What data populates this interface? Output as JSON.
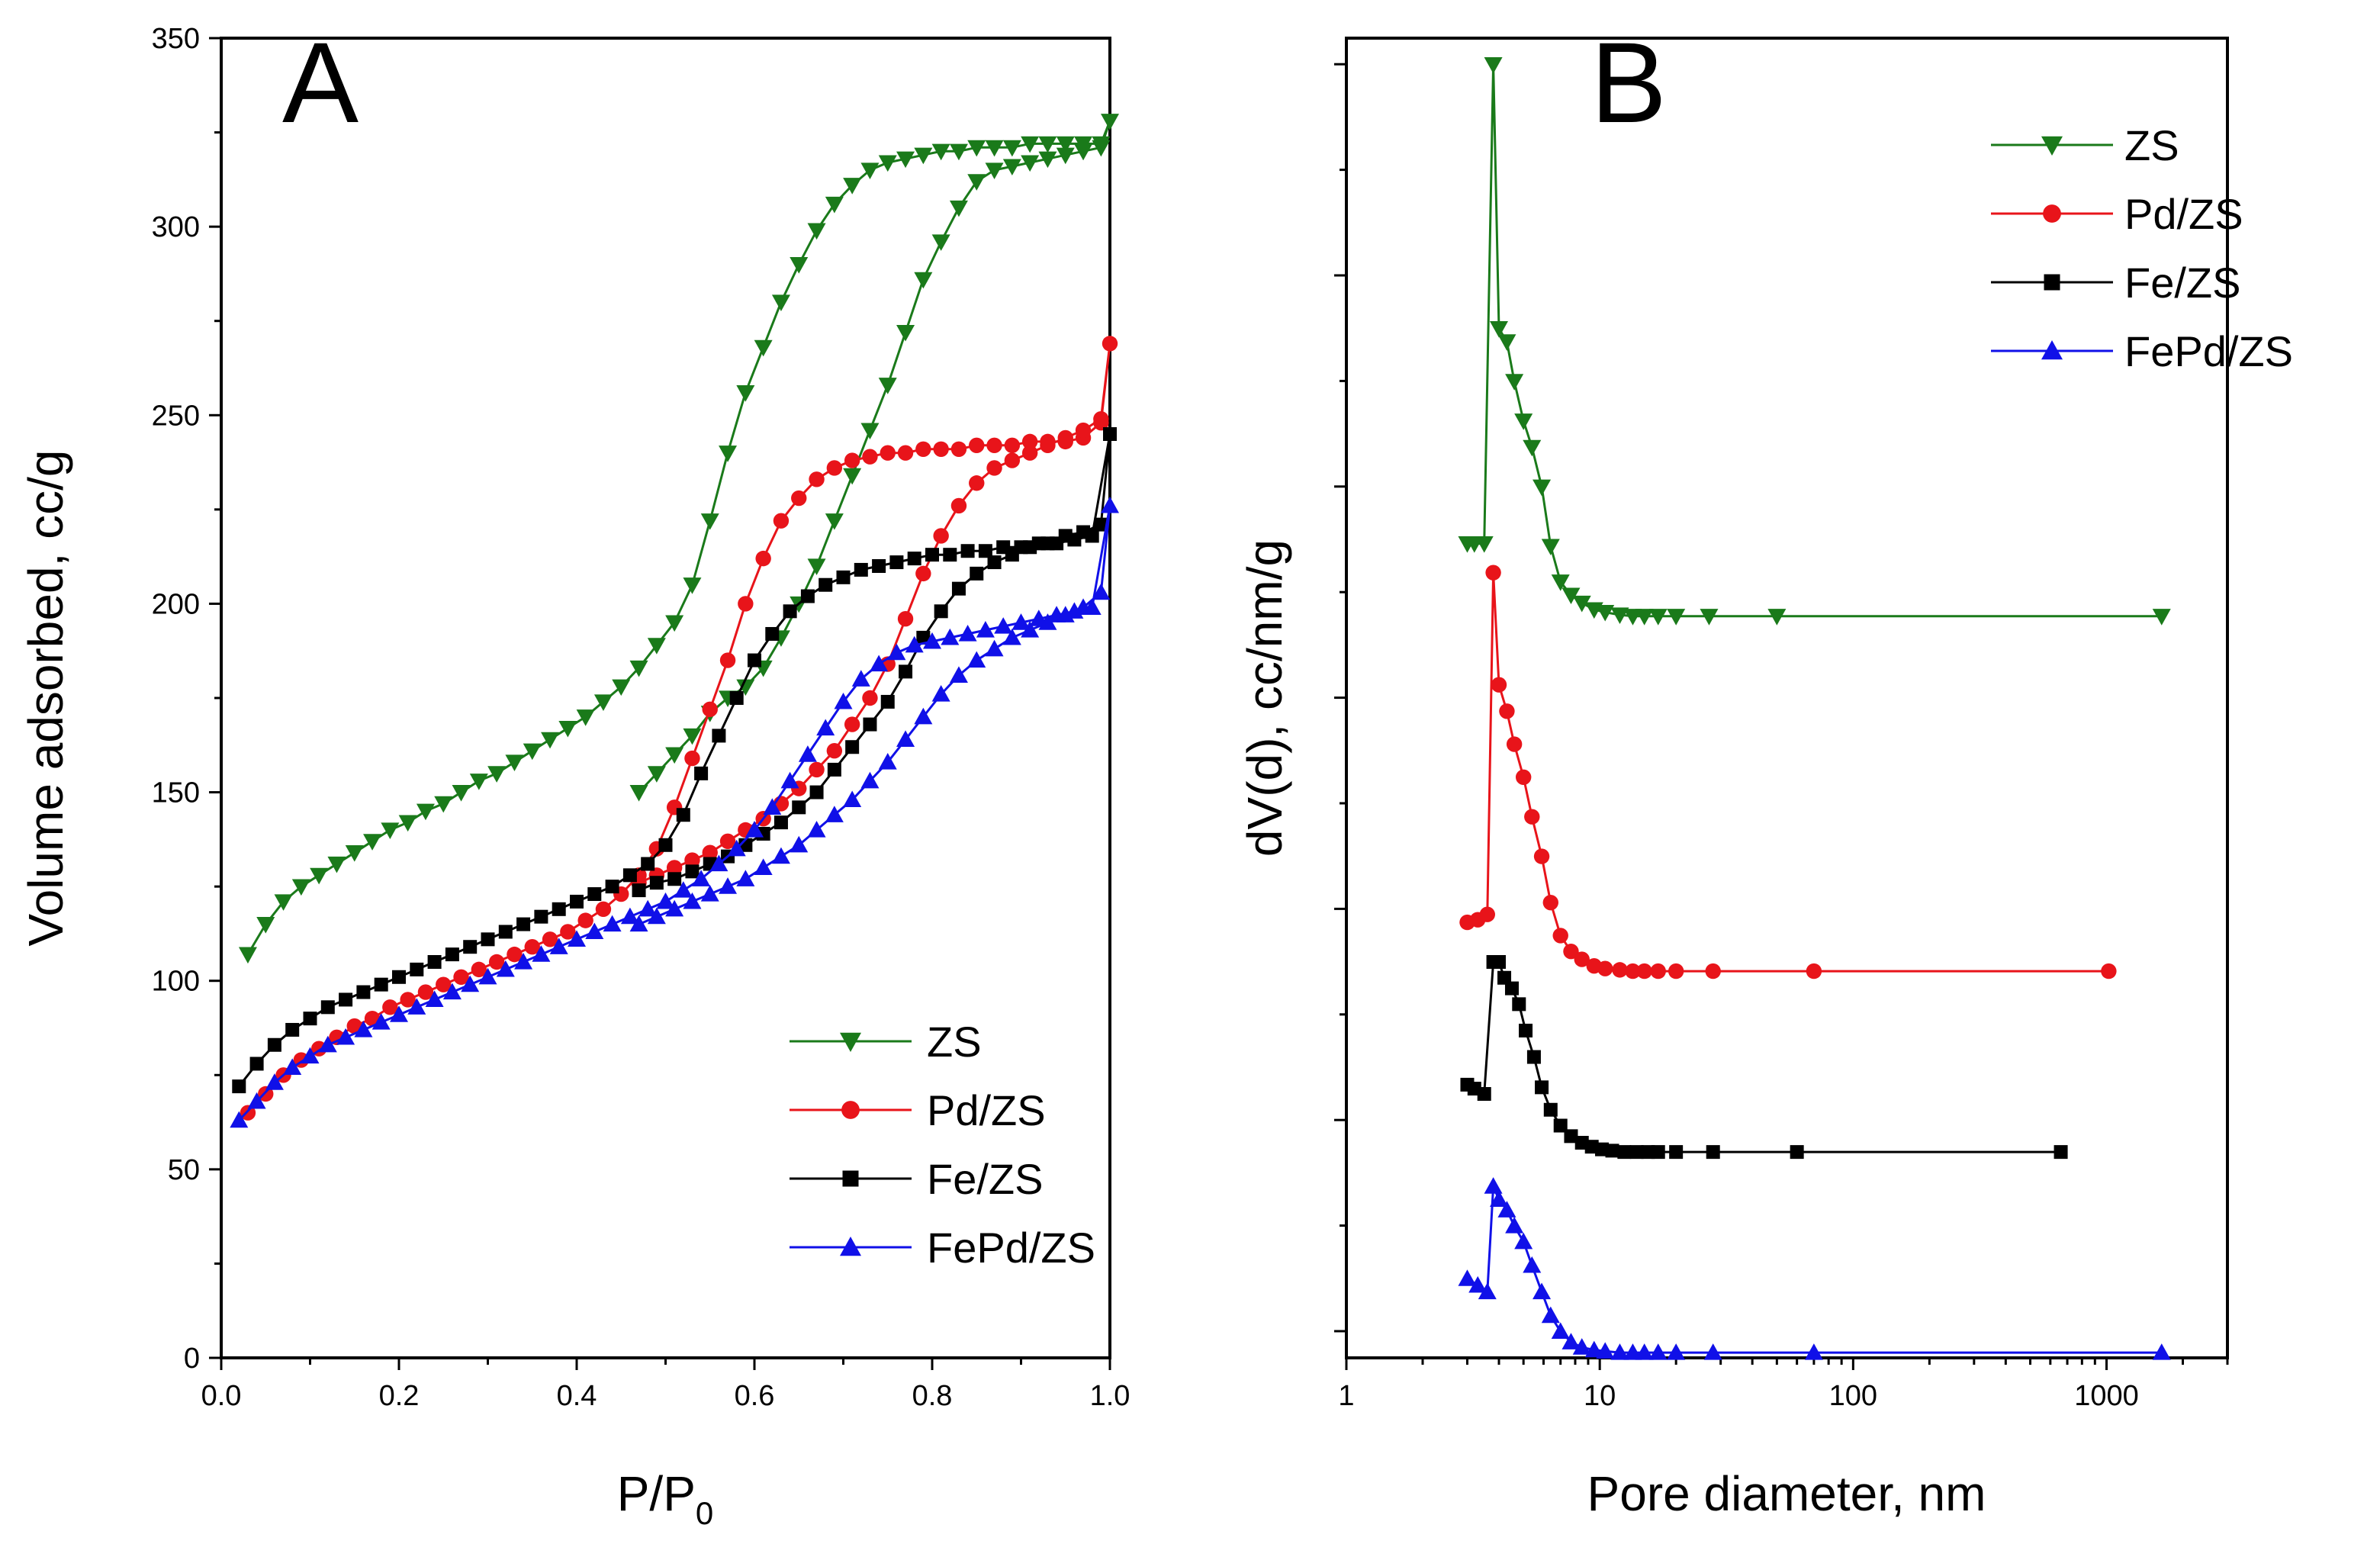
{
  "figure": {
    "panel_a_label": "A",
    "panel_b_label": "B"
  },
  "chart_data": [
    {
      "type": "line",
      "panel": "A",
      "xlabel_main": "P/P",
      "xlabel_sub": "0",
      "ylabel": "Volume adsorbed, cc/g",
      "xlim": [
        0.0,
        1.0
      ],
      "ylim": [
        0,
        350
      ],
      "xticks": [
        "0.0",
        "0.2",
        "0.4",
        "0.6",
        "0.8",
        "1.0"
      ],
      "yticks": [
        "0",
        "50",
        "100",
        "150",
        "200",
        "250",
        "300",
        "350"
      ],
      "legend_position": "lower-right",
      "series": [
        {
          "name": "ZS",
          "color": "#1a7a1a",
          "marker": "triangle-down",
          "x": [
            0.03,
            0.05,
            0.07,
            0.09,
            0.11,
            0.13,
            0.15,
            0.17,
            0.19,
            0.21,
            0.23,
            0.25,
            0.27,
            0.29,
            0.31,
            0.33,
            0.35,
            0.37,
            0.39,
            0.41,
            0.43,
            0.45,
            0.47,
            0.49,
            0.51,
            0.53,
            0.55,
            0.57,
            0.59,
            0.61,
            0.63,
            0.65,
            0.67,
            0.69,
            0.71,
            0.73,
            0.75,
            0.77,
            0.79,
            0.81,
            0.83,
            0.85,
            0.87,
            0.89,
            0.91,
            0.93,
            0.95,
            0.97,
            0.99,
            1.0,
            0.99,
            0.97,
            0.95,
            0.93,
            0.91,
            0.89,
            0.87,
            0.85,
            0.83,
            0.81,
            0.79,
            0.77,
            0.75,
            0.73,
            0.71,
            0.69,
            0.67,
            0.65,
            0.63,
            0.61,
            0.59,
            0.57,
            0.55,
            0.53,
            0.51,
            0.49,
            0.47
          ],
          "y": [
            107,
            115,
            121,
            125,
            128,
            131,
            134,
            137,
            140,
            142,
            145,
            147,
            150,
            153,
            155,
            158,
            161,
            164,
            167,
            170,
            174,
            178,
            183,
            189,
            195,
            205,
            222,
            240,
            256,
            268,
            280,
            290,
            299,
            306,
            311,
            315,
            317,
            318,
            319,
            320,
            320,
            321,
            321,
            321,
            322,
            322,
            322,
            322,
            322,
            328,
            321,
            320,
            319,
            318,
            317,
            316,
            315,
            312,
            305,
            296,
            286,
            272,
            258,
            246,
            234,
            222,
            210,
            200,
            191,
            183,
            178,
            175,
            171,
            165,
            160,
            155,
            150
          ]
        },
        {
          "name": "Pd/ZS",
          "color": "#e8141a",
          "marker": "circle",
          "x": [
            0.03,
            0.05,
            0.07,
            0.09,
            0.11,
            0.13,
            0.15,
            0.17,
            0.19,
            0.21,
            0.23,
            0.25,
            0.27,
            0.29,
            0.31,
            0.33,
            0.35,
            0.37,
            0.39,
            0.41,
            0.43,
            0.45,
            0.47,
            0.49,
            0.51,
            0.53,
            0.55,
            0.57,
            0.59,
            0.61,
            0.63,
            0.65,
            0.67,
            0.69,
            0.71,
            0.73,
            0.75,
            0.77,
            0.79,
            0.81,
            0.83,
            0.85,
            0.87,
            0.89,
            0.91,
            0.93,
            0.95,
            0.97,
            0.99,
            1.0,
            0.99,
            0.97,
            0.95,
            0.93,
            0.91,
            0.89,
            0.87,
            0.85,
            0.83,
            0.81,
            0.79,
            0.77,
            0.75,
            0.73,
            0.71,
            0.69,
            0.67,
            0.65,
            0.63,
            0.61,
            0.59,
            0.57,
            0.55,
            0.53,
            0.51,
            0.49,
            0.47
          ],
          "y": [
            65,
            70,
            75,
            79,
            82,
            85,
            88,
            90,
            93,
            95,
            97,
            99,
            101,
            103,
            105,
            107,
            109,
            111,
            113,
            116,
            119,
            123,
            128,
            135,
            146,
            159,
            172,
            185,
            200,
            212,
            222,
            228,
            233,
            236,
            238,
            239,
            240,
            240,
            241,
            241,
            241,
            242,
            242,
            242,
            243,
            243,
            243,
            244,
            248,
            269,
            249,
            246,
            244,
            242,
            240,
            238,
            236,
            232,
            226,
            218,
            208,
            196,
            184,
            175,
            168,
            161,
            156,
            151,
            147,
            143,
            140,
            137,
            134,
            132,
            130,
            128,
            126
          ]
        },
        {
          "name": "Fe/ZS",
          "color": "#000000",
          "marker": "square",
          "x": [
            0.02,
            0.04,
            0.06,
            0.08,
            0.1,
            0.12,
            0.14,
            0.16,
            0.18,
            0.2,
            0.22,
            0.24,
            0.26,
            0.28,
            0.3,
            0.32,
            0.34,
            0.36,
            0.38,
            0.4,
            0.42,
            0.44,
            0.46,
            0.48,
            0.5,
            0.52,
            0.54,
            0.56,
            0.58,
            0.6,
            0.62,
            0.64,
            0.66,
            0.68,
            0.7,
            0.72,
            0.74,
            0.76,
            0.78,
            0.8,
            0.82,
            0.84,
            0.86,
            0.88,
            0.9,
            0.92,
            0.94,
            0.96,
            0.98,
            1.0,
            0.99,
            0.97,
            0.95,
            0.93,
            0.91,
            0.89,
            0.87,
            0.85,
            0.83,
            0.81,
            0.79,
            0.77,
            0.75,
            0.73,
            0.71,
            0.69,
            0.67,
            0.65,
            0.63,
            0.61,
            0.59,
            0.57,
            0.55,
            0.53,
            0.51,
            0.49,
            0.47
          ],
          "y": [
            72,
            78,
            83,
            87,
            90,
            93,
            95,
            97,
            99,
            101,
            103,
            105,
            107,
            109,
            111,
            113,
            115,
            117,
            119,
            121,
            123,
            125,
            128,
            131,
            136,
            144,
            155,
            165,
            175,
            185,
            192,
            198,
            202,
            205,
            207,
            209,
            210,
            211,
            212,
            213,
            213,
            214,
            214,
            215,
            215,
            216,
            216,
            217,
            218,
            245,
            221,
            219,
            218,
            216,
            215,
            213,
            211,
            208,
            204,
            198,
            191,
            182,
            174,
            168,
            162,
            156,
            150,
            146,
            142,
            139,
            136,
            133,
            131,
            129,
            127,
            126,
            124
          ]
        },
        {
          "name": "FePd/ZS",
          "color": "#1010e8",
          "marker": "triangle-up",
          "x": [
            0.02,
            0.04,
            0.06,
            0.08,
            0.1,
            0.12,
            0.14,
            0.16,
            0.18,
            0.2,
            0.22,
            0.24,
            0.26,
            0.28,
            0.3,
            0.32,
            0.34,
            0.36,
            0.38,
            0.4,
            0.42,
            0.44,
            0.46,
            0.48,
            0.5,
            0.52,
            0.54,
            0.56,
            0.58,
            0.6,
            0.62,
            0.64,
            0.66,
            0.68,
            0.7,
            0.72,
            0.74,
            0.76,
            0.78,
            0.8,
            0.82,
            0.84,
            0.86,
            0.88,
            0.9,
            0.92,
            0.94,
            0.96,
            0.98,
            1.0,
            0.99,
            0.97,
            0.95,
            0.93,
            0.91,
            0.89,
            0.87,
            0.85,
            0.83,
            0.81,
            0.79,
            0.77,
            0.75,
            0.73,
            0.71,
            0.69,
            0.67,
            0.65,
            0.63,
            0.61,
            0.59,
            0.57,
            0.55,
            0.53,
            0.51,
            0.49,
            0.47
          ],
          "y": [
            63,
            68,
            73,
            77,
            80,
            83,
            85,
            87,
            89,
            91,
            93,
            95,
            97,
            99,
            101,
            103,
            105,
            107,
            109,
            111,
            113,
            115,
            117,
            119,
            121,
            124,
            127,
            131,
            135,
            140,
            146,
            153,
            160,
            167,
            174,
            180,
            184,
            187,
            189,
            190,
            191,
            192,
            193,
            194,
            195,
            196,
            197,
            198,
            199,
            226,
            203,
            199,
            197,
            195,
            193,
            191,
            188,
            185,
            181,
            176,
            170,
            164,
            158,
            153,
            148,
            144,
            140,
            136,
            133,
            130,
            127,
            125,
            123,
            121,
            119,
            117,
            115
          ]
        }
      ]
    },
    {
      "type": "line",
      "panel": "B",
      "xscale": "log",
      "xlabel": "Pore diameter, nm",
      "ylabel": "dV(d), cc/nm/g",
      "xlim": [
        1,
        3000
      ],
      "ylim": [
        0,
        1
      ],
      "xticks": [
        "1",
        "10",
        "100",
        "1000"
      ],
      "yticks_unlabeled": 13,
      "legend_position": "top-right",
      "series": [
        {
          "name": "ZS",
          "color": "#1a7a1a",
          "marker": "triangle-down",
          "x": [
            3.0,
            3.2,
            3.5,
            3.8,
            4.0,
            4.3,
            4.6,
            5.0,
            5.4,
            5.9,
            6.4,
            7.0,
            7.7,
            8.5,
            9.5,
            10.5,
            12,
            13.5,
            15,
            17,
            20,
            27,
            50,
            1650
          ],
          "y": [
            0.617,
            0.617,
            0.617,
            0.98,
            0.78,
            0.77,
            0.74,
            0.71,
            0.69,
            0.66,
            0.615,
            0.588,
            0.578,
            0.572,
            0.567,
            0.565,
            0.563,
            0.562,
            0.562,
            0.562,
            0.562,
            0.562,
            0.562,
            0.562
          ]
        },
        {
          "name": "Pd/ZS",
          "color": "#e8141a",
          "marker": "circle",
          "x": [
            3.0,
            3.3,
            3.6,
            3.8,
            4.0,
            4.3,
            4.6,
            5.0,
            5.4,
            5.9,
            6.4,
            7.0,
            7.7,
            8.5,
            9.5,
            10.5,
            12,
            13.5,
            15,
            17,
            20,
            28,
            70,
            1020
          ],
          "y": [
            0.33,
            0.332,
            0.336,
            0.595,
            0.51,
            0.49,
            0.465,
            0.44,
            0.41,
            0.38,
            0.345,
            0.32,
            0.308,
            0.302,
            0.297,
            0.295,
            0.294,
            0.293,
            0.293,
            0.293,
            0.293,
            0.293,
            0.293,
            0.293
          ]
        },
        {
          "name": "Fe/ZS",
          "color": "#000000",
          "marker": "square",
          "x": [
            3.0,
            3.2,
            3.5,
            3.8,
            4.0,
            4.2,
            4.5,
            4.8,
            5.1,
            5.5,
            5.9,
            6.4,
            7.0,
            7.7,
            8.5,
            9.3,
            10.2,
            11.2,
            12.5,
            14,
            15.5,
            17,
            20,
            28,
            60,
            660
          ],
          "y": [
            0.207,
            0.204,
            0.2,
            0.3,
            0.3,
            0.288,
            0.28,
            0.268,
            0.248,
            0.228,
            0.205,
            0.188,
            0.176,
            0.168,
            0.163,
            0.16,
            0.158,
            0.157,
            0.156,
            0.156,
            0.156,
            0.156,
            0.156,
            0.156,
            0.156,
            0.156
          ]
        },
        {
          "name": "FePd/ZS",
          "color": "#1010e8",
          "marker": "triangle-up",
          "x": [
            3.0,
            3.3,
            3.6,
            3.8,
            4.0,
            4.3,
            4.6,
            5.0,
            5.4,
            5.9,
            6.4,
            7.0,
            7.7,
            8.5,
            9.5,
            10.5,
            12,
            13.5,
            15,
            17,
            20,
            28,
            70,
            1650
          ],
          "y": [
            0.06,
            0.055,
            0.05,
            0.13,
            0.12,
            0.112,
            0.1,
            0.088,
            0.07,
            0.05,
            0.032,
            0.02,
            0.012,
            0.008,
            0.006,
            0.005,
            0.004,
            0.004,
            0.004,
            0.004,
            0.004,
            0.004,
            0.004,
            0.004
          ]
        }
      ]
    }
  ]
}
